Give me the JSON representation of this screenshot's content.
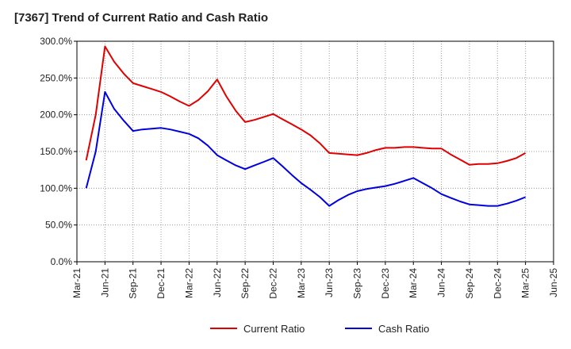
{
  "chart_data": {
    "type": "line",
    "title": "[7367]  Trend of Current Ratio and Cash Ratio",
    "xlabel": "",
    "ylabel": "",
    "ylim": [
      0,
      300
    ],
    "y_ticks": [
      0,
      50,
      100,
      150,
      200,
      250,
      300
    ],
    "y_tick_labels": [
      "0.0%",
      "50.0%",
      "100.0%",
      "150.0%",
      "200.0%",
      "250.0%",
      "300.0%"
    ],
    "x_ticks": [
      "Mar-21",
      "Jun-21",
      "Sep-21",
      "Dec-21",
      "Mar-22",
      "Jun-22",
      "Sep-22",
      "Dec-22",
      "Mar-23",
      "Jun-23",
      "Sep-23",
      "Dec-23",
      "Mar-24",
      "Jun-24",
      "Sep-24",
      "Dec-24",
      "Mar-25",
      "Jun-25"
    ],
    "grid": true,
    "legend_position": "bottom",
    "series": [
      {
        "name": "Current Ratio",
        "color": "#e00000",
        "x": [
          0.33,
          0.67,
          1.0,
          1.33,
          1.67,
          2.0,
          2.33,
          2.67,
          3.0,
          3.33,
          3.67,
          4.0,
          4.33,
          4.67,
          5.0,
          5.33,
          5.67,
          6.0,
          6.33,
          6.67,
          7.0,
          7.33,
          7.67,
          8.0,
          8.33,
          8.67,
          9.0,
          9.33,
          9.67,
          10.0,
          10.33,
          10.67,
          11.0,
          11.33,
          11.67,
          12.0,
          12.33,
          12.67,
          13.0,
          13.33,
          13.67,
          14.0,
          14.33,
          14.67,
          15.0,
          15.33,
          15.67,
          16.0
        ],
        "values": [
          138,
          200,
          293,
          272,
          256,
          243,
          239,
          235,
          231,
          225,
          218,
          212,
          220,
          232,
          248,
          225,
          205,
          190,
          193,
          197,
          201,
          194,
          187,
          180,
          172,
          161,
          148,
          147,
          146,
          145,
          148,
          152,
          155,
          155,
          156,
          156,
          155,
          154,
          154,
          146,
          139,
          132,
          133,
          133,
          134,
          137,
          141,
          148
        ]
      },
      {
        "name": "Cash Ratio",
        "color": "#0000e0",
        "x": [
          0.33,
          0.67,
          1.0,
          1.33,
          1.67,
          2.0,
          2.33,
          2.67,
          3.0,
          3.33,
          3.67,
          4.0,
          4.33,
          4.67,
          5.0,
          5.33,
          5.67,
          6.0,
          6.33,
          6.67,
          7.0,
          7.33,
          7.67,
          8.0,
          8.33,
          8.67,
          9.0,
          9.33,
          9.67,
          10.0,
          10.33,
          10.67,
          11.0,
          11.33,
          11.67,
          12.0,
          12.33,
          12.67,
          13.0,
          13.33,
          13.67,
          14.0,
          14.33,
          14.67,
          15.0,
          15.33,
          15.67,
          16.0
        ],
        "values": [
          100,
          150,
          231,
          208,
          192,
          178,
          180,
          181,
          182,
          180,
          177,
          174,
          168,
          158,
          145,
          138,
          131,
          126,
          131,
          136,
          141,
          130,
          118,
          107,
          98,
          88,
          76,
          84,
          91,
          96,
          99,
          101,
          103,
          106,
          110,
          114,
          107,
          100,
          92,
          87,
          82,
          78,
          77,
          76,
          76,
          79,
          83,
          88
        ]
      }
    ]
  }
}
